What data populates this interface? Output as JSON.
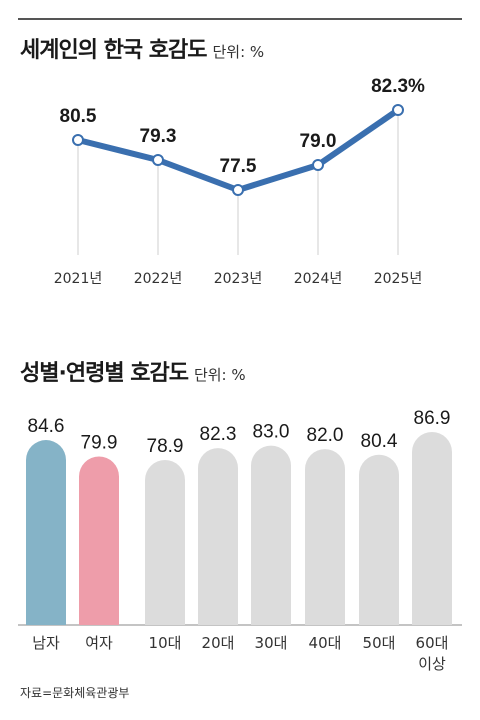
{
  "top_title": "세계인의 한국 호감도",
  "top_unit": "단위: %",
  "bottom_title": "성별·연령별 호감도",
  "bottom_unit": "단위: %",
  "source": "자료=문화체육관광부",
  "chart_data": [
    {
      "type": "line",
      "title": "세계인의 한국 호감도",
      "unit": "%",
      "categories": [
        "2021년",
        "2022년",
        "2023년",
        "2024년",
        "2025년"
      ],
      "values": [
        80.5,
        79.3,
        77.5,
        79.0,
        82.3
      ],
      "labels": [
        "80.5",
        "79.3",
        "77.5",
        "79.0",
        "82.3%"
      ],
      "color": "#3a6faf",
      "grid": false
    },
    {
      "type": "bar",
      "title": "성별·연령별 호감도",
      "unit": "%",
      "categories": [
        "남자",
        "여자",
        "10대",
        "20대",
        "30대",
        "40대",
        "50대",
        "60대 이상"
      ],
      "values": [
        84.6,
        79.9,
        78.9,
        82.3,
        83.0,
        82.0,
        80.4,
        86.9
      ],
      "labels": [
        "84.6",
        "79.9",
        "78.9",
        "82.3",
        "83.0",
        "82.0",
        "80.4",
        "86.9"
      ],
      "colors": [
        "#85b3c7",
        "#ee9daa",
        "#dcdcdc",
        "#dcdcdc",
        "#dcdcdc",
        "#dcdcdc",
        "#dcdcdc",
        "#dcdcdc"
      ],
      "grid": false
    }
  ]
}
